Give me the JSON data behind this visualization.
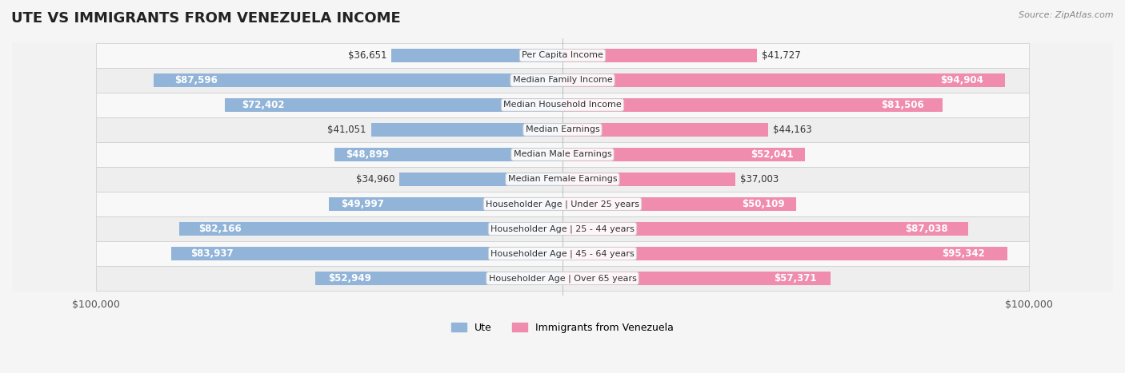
{
  "title": "UTE VS IMMIGRANTS FROM VENEZUELA INCOME",
  "source": "Source: ZipAtlas.com",
  "categories": [
    "Per Capita Income",
    "Median Family Income",
    "Median Household Income",
    "Median Earnings",
    "Median Male Earnings",
    "Median Female Earnings",
    "Householder Age | Under 25 years",
    "Householder Age | 25 - 44 years",
    "Householder Age | 45 - 64 years",
    "Householder Age | Over 65 years"
  ],
  "ute_values": [
    36651,
    87596,
    72402,
    41051,
    48899,
    34960,
    49997,
    82166,
    83937,
    52949
  ],
  "ven_values": [
    41727,
    94904,
    81506,
    44163,
    52041,
    37003,
    50109,
    87038,
    95342,
    57371
  ],
  "ute_color": "#92b4d8",
  "ven_color": "#f08cad",
  "max_val": 100000,
  "bar_height": 0.55,
  "bg_color": "#f0f0f0",
  "row_bg_even": "#f7f7f7",
  "row_bg_odd": "#e8e8e8",
  "label_fontsize": 8.5,
  "title_fontsize": 13,
  "legend_ute": "Ute",
  "legend_ven": "Immigrants from Venezuela"
}
